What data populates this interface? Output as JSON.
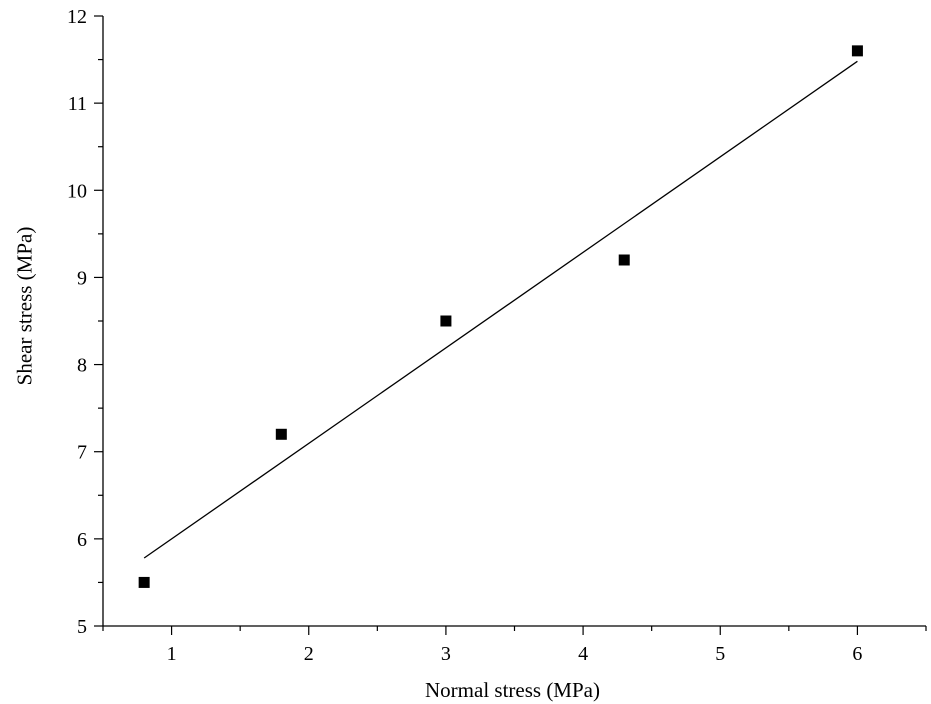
{
  "chart_data": {
    "type": "scatter",
    "title": "",
    "xlabel": "Normal stress (MPa)",
    "ylabel": "Shear stress (MPa)",
    "xlim": [
      0.5,
      6.5
    ],
    "ylim": [
      5,
      12
    ],
    "xticks": [
      1,
      2,
      3,
      4,
      5,
      6
    ],
    "yticks": [
      5,
      6,
      7,
      8,
      9,
      10,
      11,
      12
    ],
    "grid": false,
    "series": [
      {
        "marker": "square",
        "color": "#000000",
        "points": [
          {
            "x": 0.8,
            "y": 5.5
          },
          {
            "x": 1.8,
            "y": 7.2
          },
          {
            "x": 3.0,
            "y": 8.5
          },
          {
            "x": 4.3,
            "y": 9.2
          },
          {
            "x": 6.0,
            "y": 11.6
          }
        ]
      }
    ],
    "fit_line": {
      "color": "#000000",
      "points": [
        {
          "x": 0.8,
          "y": 5.78
        },
        {
          "x": 6.0,
          "y": 11.48
        }
      ]
    }
  }
}
